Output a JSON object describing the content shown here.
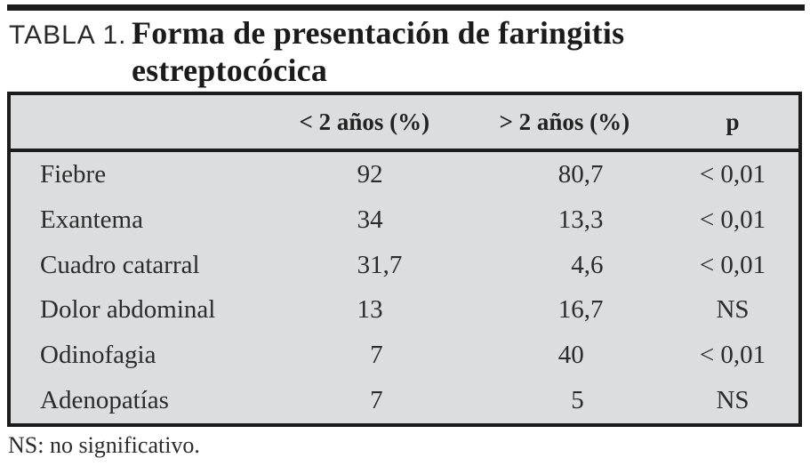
{
  "page": {
    "title_label": "TABLA 1.",
    "title_line1": "Forma de presentación de faringitis",
    "title_line2": "estreptocócica",
    "footnote": "NS: no significativo."
  },
  "table": {
    "header": {
      "under2": "< 2 años (%)",
      "over2": "> 2 años (%)",
      "p": "p"
    },
    "rows": [
      {
        "label": "Fiebre",
        "under2": "92",
        "over2": "80,7",
        "p": "< 0,01"
      },
      {
        "label": "Exantema",
        "under2": "34",
        "over2": "13,3",
        "p": "< 0,01"
      },
      {
        "label": "Cuadro catarral",
        "under2": "31,7",
        "over2": "4,6",
        "p": "< 0,01"
      },
      {
        "label": "Dolor abdominal",
        "under2": "13",
        "over2": "16,7",
        "p": "NS"
      },
      {
        "label": "Odinofagia",
        "under2": "7",
        "over2": "40",
        "p": "< 0,01"
      },
      {
        "label": "Adenopatías",
        "under2": "7",
        "over2": "5",
        "p": "NS"
      }
    ]
  },
  "chart_data": {
    "type": "table",
    "title": "TABLA 1. Forma de presentación de faringitis estreptocócica",
    "categories": [
      "Fiebre",
      "Exantema",
      "Cuadro catarral",
      "Dolor abdominal",
      "Odinofagia",
      "Adenopatías"
    ],
    "series": [
      {
        "name": "< 2 años (%)",
        "values": [
          92,
          34,
          31.7,
          13,
          7,
          7
        ]
      },
      {
        "name": "> 2 años (%)",
        "values": [
          80.7,
          13.3,
          4.6,
          16.7,
          40,
          5
        ]
      },
      {
        "name": "p",
        "values": [
          "< 0,01",
          "< 0,01",
          "< 0,01",
          "NS",
          "< 0,01",
          "NS"
        ]
      }
    ],
    "footnote": "NS: no significativo."
  },
  "colors": {
    "table_background": "#dcddde",
    "border": "#1c1c1c",
    "text": "#2b2b2b"
  }
}
